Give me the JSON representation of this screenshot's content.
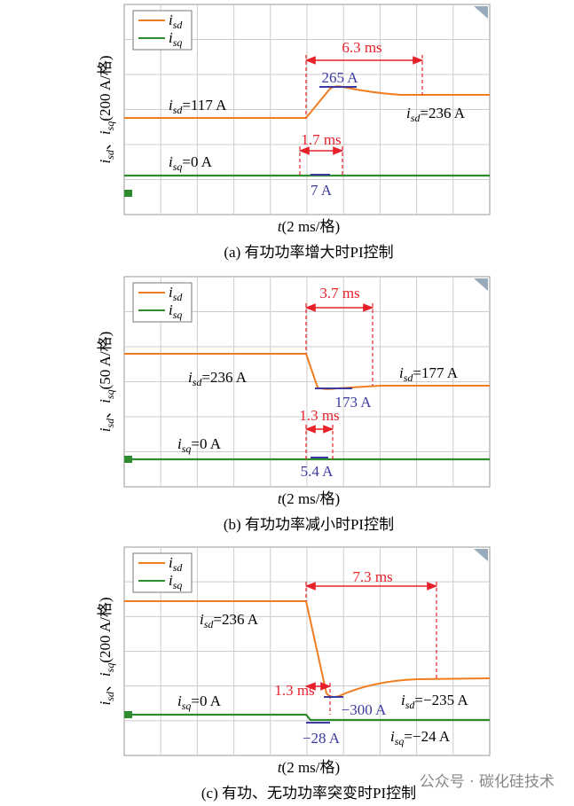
{
  "panels": [
    {
      "legend": [
        {
          "var": "i",
          "sub": "sd"
        },
        {
          "var": "i",
          "sub": "sq"
        }
      ],
      "y_label": {
        "v1": "i",
        "s1": "sd",
        "sep": "、",
        "v2": "i",
        "s2": "sq",
        "unit": "(200 A/格)"
      },
      "x_label": {
        "var": "t",
        "unit": "(2 ms/格)"
      },
      "caption": "(a) 有功功率增大时PI控制",
      "annotations": [
        {
          "text": "6.3 ms"
        },
        {
          "text": "265 A"
        },
        {
          "var": "i",
          "sub": "sd",
          "text": "=117 A"
        },
        {
          "var": "i",
          "sub": "sd",
          "text": "=236 A"
        },
        {
          "text": "1.7 ms"
        },
        {
          "var": "i",
          "sub": "sq",
          "text": "=0 A"
        },
        {
          "text": "7 A"
        }
      ]
    },
    {
      "legend": [
        {
          "var": "i",
          "sub": "sd"
        },
        {
          "var": "i",
          "sub": "sq"
        }
      ],
      "y_label": {
        "v1": "i",
        "s1": "sd",
        "sep": "、",
        "v2": "i",
        "s2": "sq",
        "unit": "(50 A/格)"
      },
      "x_label": {
        "var": "t",
        "unit": "(2 ms/格)"
      },
      "caption": "(b) 有功功率减小时PI控制",
      "annotations": [
        {
          "text": "3.7 ms"
        },
        {
          "var": "i",
          "sub": "sd",
          "text": "=236 A"
        },
        {
          "var": "i",
          "sub": "sd",
          "text": "=177 A"
        },
        {
          "text": "173 A"
        },
        {
          "text": "1.3 ms"
        },
        {
          "var": "i",
          "sub": "sq",
          "text": "=0 A"
        },
        {
          "text": "5.4 A"
        }
      ]
    },
    {
      "legend": [
        {
          "var": "i",
          "sub": "sd"
        },
        {
          "var": "i",
          "sub": "sq"
        }
      ],
      "y_label": {
        "v1": "i",
        "s1": "sd",
        "sep": "、",
        "v2": "i",
        "s2": "sq",
        "unit": "(200 A/格)"
      },
      "x_label": {
        "var": "t",
        "unit": "(2 ms/格)"
      },
      "caption": "(c) 有功、无功功率突变时PI控制",
      "annotations": [
        {
          "text": "7.3 ms"
        },
        {
          "var": "i",
          "sub": "sd",
          "text": "=236 A"
        },
        {
          "text": "1.3 ms"
        },
        {
          "var": "i",
          "sub": "sq",
          "text": "=0 A"
        },
        {
          "text": "−300 A"
        },
        {
          "var": "i",
          "sub": "sd",
          "text": "=−235 A"
        },
        {
          "text": "−28 A"
        },
        {
          "var": "i",
          "sub": "sq",
          "text": "=−24 A"
        }
      ]
    }
  ],
  "watermark": "公众号 · 碳化硅技术"
}
